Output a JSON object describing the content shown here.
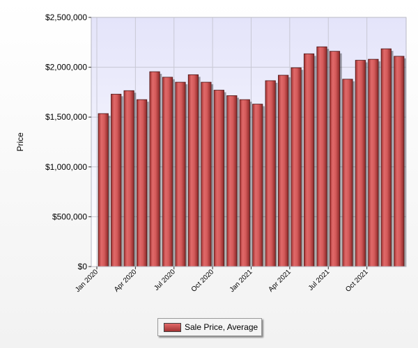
{
  "chart_data": {
    "type": "bar",
    "title": "",
    "xlabel": "",
    "ylabel": "Price",
    "ylim": [
      0,
      2500000
    ],
    "yticks": [
      0,
      500000,
      1000000,
      1500000,
      2000000,
      2500000
    ],
    "ytick_labels": [
      "$0",
      "$500,000",
      "$1,000,000",
      "$1,500,000",
      "$2,000,000",
      "$2,500,000"
    ],
    "categories": [
      "Jan 2020",
      "Feb 2020",
      "Mar 2020",
      "Apr 2020",
      "May 2020",
      "Jun 2020",
      "Jul 2020",
      "Aug 2020",
      "Sep 2020",
      "Oct 2020",
      "Nov 2020",
      "Dec 2020",
      "Jan 2021",
      "Feb 2021",
      "Mar 2021",
      "Apr 2021",
      "May 2021",
      "Jun 2021",
      "Jul 2021",
      "Aug 2021",
      "Sep 2021",
      "Oct 2021",
      "Nov 2021",
      "Dec 2021"
    ],
    "xtick_labels": [
      {
        "index": 0,
        "label": "Jan 2020"
      },
      {
        "index": 3,
        "label": "Apr 2020"
      },
      {
        "index": 6,
        "label": "Jul 2020"
      },
      {
        "index": 9,
        "label": "Oct 2020"
      },
      {
        "index": 12,
        "label": "Jan 2021"
      },
      {
        "index": 15,
        "label": "Apr 2021"
      },
      {
        "index": 18,
        "label": "Jul 2021"
      },
      {
        "index": 21,
        "label": "Oct 2021"
      }
    ],
    "series": [
      {
        "name": "Sale Price, Average",
        "values": [
          1535000,
          1730000,
          1765000,
          1675000,
          1955000,
          1900000,
          1850000,
          1925000,
          1850000,
          1770000,
          1715000,
          1675000,
          1630000,
          1865000,
          1920000,
          1995000,
          2135000,
          2205000,
          2160000,
          1880000,
          2070000,
          2080000,
          2185000,
          2110000
        ]
      }
    ],
    "grid": true,
    "legend_position": "bottom-center",
    "colors": {
      "bar_light": "#e46a6a",
      "bar_dark": "#9e3030",
      "plot_background_top": "#e4e4fa",
      "plot_background_bottom": "#ffffff",
      "grid": "#c8c8d4"
    }
  },
  "legend": {
    "label": "Sale Price, Average"
  }
}
